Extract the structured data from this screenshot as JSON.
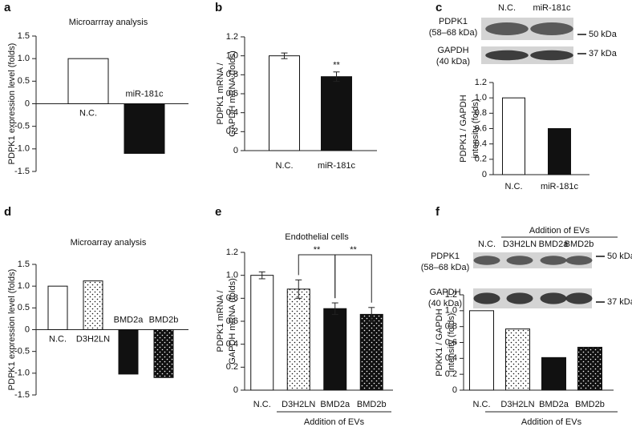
{
  "chart_data": [
    {
      "type": "bar",
      "panel": "a",
      "title": "Microarrray analysis",
      "ylabel": [
        "PDPK1 expression level (folds)"
      ],
      "categories": [
        "N.C.",
        "miR-181c"
      ],
      "values": [
        1.0,
        -1.1
      ],
      "colors": [
        "#ffffff",
        "#111111"
      ],
      "dotted": [
        false,
        false
      ],
      "ylim": [
        -1.5,
        1.5
      ],
      "yticks": [
        -1.5,
        {
          "value": -1,
          "label": "-1.0"
        },
        -0.5,
        0,
        0.5,
        {
          "value": 1,
          "label": "1.0"
        },
        1.5
      ]
    },
    {
      "type": "bar",
      "panel": "b",
      "ylabel": [
        "PDPK1 mRNA /",
        "GAPDH mRNA (folds)"
      ],
      "categories": [
        "N.C.",
        "miR-181c"
      ],
      "values": [
        1.0,
        0.78
      ],
      "errors": [
        0.03,
        0.05
      ],
      "colors": [
        "#ffffff",
        "#111111"
      ],
      "dotted": [
        false,
        false
      ],
      "significance": [
        "**"
      ],
      "ylim": [
        0,
        1.2
      ],
      "yticks": [
        0,
        0.2,
        0.4,
        0.6,
        0.8,
        {
          "value": 1,
          "label": "1.0"
        },
        1.2
      ]
    },
    {
      "type": "bar",
      "panel": "c",
      "ylabel": [
        "PDPK1 / GAPDH",
        "intensity (folds)"
      ],
      "categories": [
        "N.C.",
        "miR-181c"
      ],
      "values": [
        1.0,
        0.6
      ],
      "colors": [
        "#ffffff",
        "#111111"
      ],
      "dotted": [
        false,
        false
      ],
      "ylim": [
        0,
        1.2
      ],
      "yticks": [
        0,
        0.2,
        0.4,
        0.6,
        0.8,
        {
          "value": 1,
          "label": "1.0"
        },
        1.2
      ],
      "blot": {
        "lanes": [
          "N.C.",
          "miR-181c"
        ],
        "rows": [
          {
            "name": "PDPK1",
            "size": "(58–68 kDa)"
          },
          {
            "name": "GAPDH",
            "size": "(40 kDa)"
          }
        ],
        "markers": [
          "50 kDa",
          "37 kDa"
        ]
      }
    },
    {
      "type": "bar",
      "panel": "d",
      "title": "Microarray analysis",
      "ylabel": [
        "PDPK1 expression level (folds)"
      ],
      "categories": [
        "N.C.",
        "D3H2LN",
        "BMD2a",
        "BMD2b"
      ],
      "values": [
        1.0,
        1.12,
        -1.02,
        -1.1
      ],
      "colors": [
        "#ffffff",
        "#ffffff",
        "#111111",
        "#111111"
      ],
      "dotted": [
        false,
        true,
        false,
        true
      ],
      "ylim": [
        -1.5,
        1.5
      ],
      "yticks": [
        -1.5,
        {
          "value": -1,
          "label": "-1.0"
        },
        -0.5,
        0,
        0.5,
        {
          "value": 1,
          "label": "1.0"
        },
        1.5
      ]
    },
    {
      "type": "bar",
      "panel": "e",
      "title": "Endothelial cells",
      "ylabel": [
        "PDPK1 mRNA /",
        "GAPDH mRNA (folds)"
      ],
      "categories": [
        "N.C.",
        "D3H2LN",
        "BMD2a",
        "BMD2b"
      ],
      "values": [
        1.0,
        0.88,
        0.71,
        0.66
      ],
      "errors": [
        0.03,
        0.08,
        0.05,
        0.06
      ],
      "colors": [
        "#ffffff",
        "#ffffff",
        "#111111",
        "#111111"
      ],
      "dotted": [
        false,
        true,
        false,
        true
      ],
      "significance": [
        "**",
        "**"
      ],
      "group": "Addition of EVs",
      "ylim": [
        0,
        1.2
      ],
      "yticks": [
        0,
        0.2,
        0.4,
        0.6,
        0.8,
        {
          "value": 1,
          "label": "1.0"
        },
        1.2
      ]
    },
    {
      "type": "bar",
      "panel": "f",
      "ylabel": [
        "PDKK1 / GAPDH",
        "intensity (folds)"
      ],
      "categories": [
        "N.C.",
        "D3H2LN",
        "BMD2a",
        "BMD2b"
      ],
      "values": [
        1.0,
        0.77,
        0.41,
        0.54
      ],
      "colors": [
        "#ffffff",
        "#ffffff",
        "#111111",
        "#111111"
      ],
      "dotted": [
        false,
        true,
        false,
        true
      ],
      "group": "Addition of EVs",
      "ylim": [
        0,
        1.2
      ],
      "yticks": [
        0,
        0.2,
        0.4,
        0.6,
        0.8,
        {
          "value": 1,
          "label": "1.0"
        },
        1.2
      ],
      "blot": {
        "group": "Addition of EVs",
        "lanes": [
          "N.C.",
          "D3H2LN",
          "BMD2a",
          "BMD2b"
        ],
        "rows": [
          {
            "name": "PDPK1",
            "size": "(58–68 kDa)"
          },
          {
            "name": "GAPDH",
            "size": "(40 kDa)"
          }
        ],
        "markers": [
          "50 kDa",
          "37 kDa"
        ]
      }
    }
  ]
}
